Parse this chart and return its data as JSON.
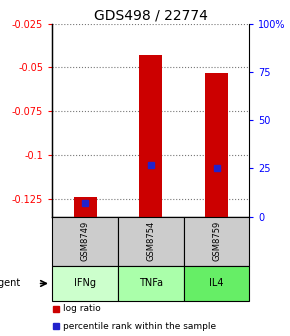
{
  "title": "GDS498 / 22774",
  "samples": [
    "GSM8749",
    "GSM8754",
    "GSM8759"
  ],
  "agents": [
    "IFNg",
    "TNFa",
    "IL4"
  ],
  "log_ratios": [
    -0.124,
    -0.043,
    -0.053
  ],
  "percentile_ranks": [
    7,
    27,
    25
  ],
  "ylim": [
    -0.135,
    -0.025
  ],
  "left_ticks": [
    -0.025,
    -0.05,
    -0.075,
    -0.1,
    -0.125
  ],
  "right_ticks": [
    100,
    75,
    50,
    25,
    0
  ],
  "bar_color": "#cc0000",
  "dot_color": "#2222cc",
  "agent_colors": [
    "#ccffcc",
    "#aaffaa",
    "#66ee66"
  ],
  "sample_box_color": "#cccccc",
  "title_fontsize": 10,
  "legend_bar_label": "log ratio",
  "legend_dot_label": "percentile rank within the sample"
}
